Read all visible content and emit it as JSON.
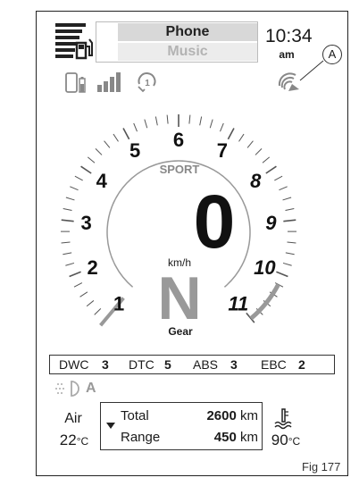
{
  "menu": {
    "selected": "Phone",
    "unselected": "Music"
  },
  "clock": {
    "time": "10:34",
    "ampm": "am"
  },
  "callout": "A",
  "gauge": {
    "ticks": [
      "1",
      "2",
      "3",
      "4",
      "5",
      "6",
      "7",
      "8",
      "9",
      "10",
      "11"
    ],
    "mode": "SPORT",
    "speed": "0",
    "unit": "km/h",
    "gear": "N",
    "gear_label": "Gear"
  },
  "stats": [
    {
      "label": "DWC",
      "value": "3"
    },
    {
      "label": "DTC",
      "value": "5"
    },
    {
      "label": "ABS",
      "value": "3"
    },
    {
      "label": "EBC",
      "value": "2"
    }
  ],
  "lights": {
    "mode": "A"
  },
  "air": {
    "label": "Air",
    "value": "22",
    "unit": "°C"
  },
  "trip": {
    "rows": [
      {
        "label": "Total",
        "value": "2600",
        "unit": "km"
      },
      {
        "label": "Range",
        "value": "450",
        "unit": "km"
      }
    ]
  },
  "coolant": {
    "value": "90",
    "unit": "°C"
  },
  "figure": "Fig 177"
}
